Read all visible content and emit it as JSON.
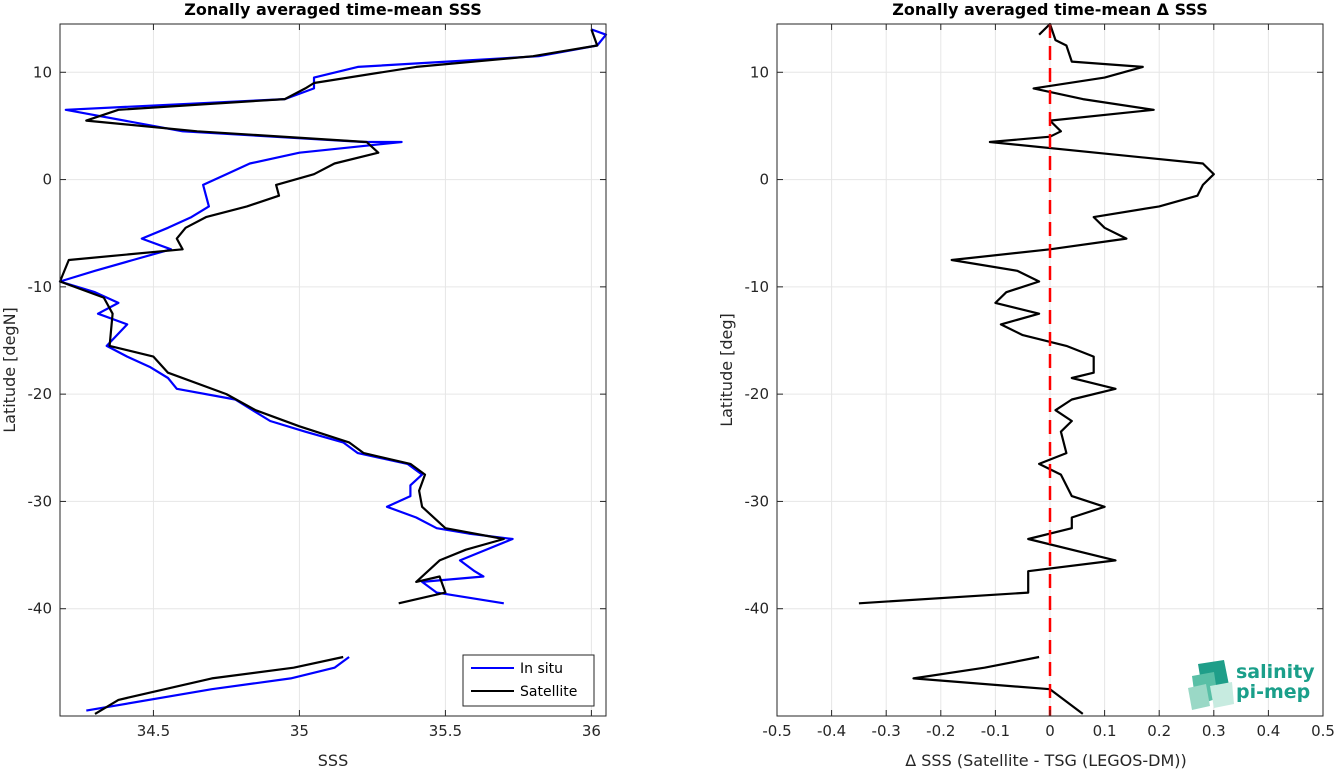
{
  "colors": {
    "in_situ": "#0000ff",
    "satellite": "#000000",
    "zero_line": "#ff0000",
    "logo_teal": "#1a9f8a"
  },
  "logo": {
    "line1": "salinity",
    "line2": "pi-mep"
  },
  "chart_data": [
    {
      "type": "line",
      "title": "Zonally averaged time-mean SSS",
      "xlabel": "SSS",
      "ylabel": "Latitude [degN]",
      "xlim": [
        34.18,
        36.05
      ],
      "ylim": [
        -50,
        14.5
      ],
      "xticks": [
        34.5,
        35,
        35.5,
        36
      ],
      "xtick_labels": [
        "34.5",
        "35",
        "35.5",
        "36"
      ],
      "yticks": [
        -40,
        -30,
        -20,
        -10,
        0,
        10
      ],
      "ytick_labels": [
        "-40",
        "-30",
        "-20",
        "-10",
        "0",
        "10"
      ],
      "grid": true,
      "legend_position": "bottom-right",
      "series": [
        {
          "name": "In situ",
          "color_key": "in_situ",
          "segments": [
            [
              [
                36.0,
                14.0
              ],
              [
                36.05,
                13.5
              ],
              [
                36.02,
                12.5
              ],
              [
                35.82,
                11.5
              ],
              [
                35.2,
                10.5
              ],
              [
                35.05,
                9.5
              ],
              [
                35.05,
                8.5
              ],
              [
                34.95,
                7.5
              ],
              [
                34.2,
                6.5
              ],
              [
                34.6,
                4.5
              ],
              [
                35.22,
                3.5
              ],
              [
                35.35,
                3.5
              ],
              [
                35.0,
                2.5
              ],
              [
                34.83,
                1.5
              ],
              [
                34.75,
                0.5
              ],
              [
                34.67,
                -0.5
              ],
              [
                34.68,
                -1.5
              ],
              [
                34.69,
                -2.5
              ],
              [
                34.63,
                -3.5
              ],
              [
                34.55,
                -4.5
              ],
              [
                34.46,
                -5.5
              ],
              [
                34.56,
                -6.5
              ],
              [
                34.43,
                -7.5
              ],
              [
                34.3,
                -8.5
              ],
              [
                34.18,
                -9.5
              ],
              [
                34.3,
                -10.5
              ],
              [
                34.38,
                -11.5
              ],
              [
                34.31,
                -12.5
              ],
              [
                34.41,
                -13.5
              ],
              [
                34.34,
                -15.5
              ],
              [
                34.41,
                -16.5
              ],
              [
                34.49,
                -17.5
              ],
              [
                34.55,
                -18.5
              ],
              [
                34.58,
                -19.5
              ],
              [
                34.78,
                -20.5
              ],
              [
                34.9,
                -22.5
              ],
              [
                35.02,
                -23.5
              ],
              [
                35.15,
                -24.5
              ],
              [
                35.2,
                -25.5
              ],
              [
                35.37,
                -26.5
              ],
              [
                35.42,
                -27.5
              ],
              [
                35.38,
                -28.5
              ],
              [
                35.38,
                -29.5
              ],
              [
                35.3,
                -30.5
              ],
              [
                35.4,
                -31.5
              ],
              [
                35.47,
                -32.5
              ],
              [
                35.58,
                -33.0
              ],
              [
                35.73,
                -33.5
              ],
              [
                35.55,
                -35.5
              ],
              [
                35.6,
                -36.5
              ],
              [
                35.63,
                -37.0
              ],
              [
                35.42,
                -37.5
              ],
              [
                35.47,
                -38.5
              ],
              [
                35.7,
                -39.5
              ]
            ],
            [
              [
                35.17,
                -44.5
              ],
              [
                35.12,
                -45.5
              ],
              [
                34.97,
                -46.5
              ],
              [
                34.7,
                -47.5
              ],
              [
                34.27,
                -49.5
              ]
            ]
          ]
        },
        {
          "name": "Satellite",
          "color_key": "satellite",
          "segments": [
            [
              [
                36.0,
                14.0
              ],
              [
                36.02,
                12.5
              ],
              [
                35.8,
                11.5
              ],
              [
                35.4,
                10.5
              ],
              [
                35.05,
                9.0
              ],
              [
                35.02,
                8.5
              ],
              [
                34.95,
                7.5
              ],
              [
                34.38,
                6.5
              ],
              [
                34.27,
                5.5
              ],
              [
                34.65,
                4.5
              ],
              [
                35.23,
                3.5
              ],
              [
                35.27,
                2.5
              ],
              [
                35.12,
                1.5
              ],
              [
                35.05,
                0.5
              ],
              [
                34.92,
                -0.5
              ],
              [
                34.93,
                -1.5
              ],
              [
                34.82,
                -2.5
              ],
              [
                34.68,
                -3.5
              ],
              [
                34.61,
                -4.5
              ],
              [
                34.58,
                -5.5
              ],
              [
                34.6,
                -6.5
              ],
              [
                34.21,
                -7.5
              ],
              [
                34.18,
                -9.5
              ],
              [
                34.33,
                -11.0
              ],
              [
                34.36,
                -12.5
              ],
              [
                34.35,
                -15.5
              ],
              [
                34.5,
                -16.5
              ],
              [
                34.55,
                -18.0
              ],
              [
                34.75,
                -20.0
              ],
              [
                34.85,
                -21.5
              ],
              [
                35.0,
                -23.0
              ],
              [
                35.17,
                -24.5
              ],
              [
                35.22,
                -25.5
              ],
              [
                35.38,
                -26.5
              ],
              [
                35.43,
                -27.5
              ],
              [
                35.41,
                -29.0
              ],
              [
                35.42,
                -30.5
              ],
              [
                35.5,
                -32.5
              ],
              [
                35.7,
                -33.5
              ],
              [
                35.57,
                -34.5
              ],
              [
                35.48,
                -35.5
              ],
              [
                35.4,
                -37.5
              ],
              [
                35.48,
                -37.0
              ],
              [
                35.5,
                -38.5
              ],
              [
                35.34,
                -39.5
              ]
            ],
            [
              [
                35.15,
                -44.5
              ],
              [
                34.98,
                -45.5
              ],
              [
                34.7,
                -46.5
              ],
              [
                34.38,
                -48.5
              ],
              [
                34.3,
                -49.8
              ]
            ]
          ]
        }
      ]
    },
    {
      "type": "line",
      "title": "Zonally averaged time-mean Δ SSS",
      "xlabel": "Δ SSS (Satellite - TSG (LEGOS-DM))",
      "ylabel": "Latitude [deg]",
      "xlim": [
        -0.5,
        0.5
      ],
      "ylim": [
        -50,
        14.5
      ],
      "xticks": [
        -0.5,
        -0.4,
        -0.3,
        -0.2,
        -0.1,
        0,
        0.1,
        0.2,
        0.3,
        0.4,
        0.5
      ],
      "xtick_labels": [
        "-0.5",
        "-0.4",
        "-0.3",
        "-0.2",
        "-0.1",
        "0",
        "0.1",
        "0.2",
        "0.3",
        "0.4",
        "0.5"
      ],
      "yticks": [
        -40,
        -30,
        -20,
        -10,
        0,
        10
      ],
      "ytick_labels": [
        "-40",
        "-30",
        "-20",
        "-10",
        "0",
        "10"
      ],
      "grid": true,
      "reference_line_x": 0,
      "series": [
        {
          "color_key": "satellite",
          "segments": [
            [
              [
                -0.02,
                13.5
              ],
              [
                0.0,
                14.5
              ],
              [
                0.01,
                13.0
              ],
              [
                0.03,
                12.5
              ],
              [
                0.04,
                11.0
              ],
              [
                0.17,
                10.5
              ],
              [
                0.1,
                9.5
              ],
              [
                -0.03,
                8.5
              ],
              [
                0.06,
                7.5
              ],
              [
                0.19,
                6.5
              ],
              [
                0.0,
                5.5
              ],
              [
                0.02,
                4.5
              ],
              [
                0.0,
                4.0
              ],
              [
                -0.11,
                3.5
              ],
              [
                0.28,
                1.5
              ],
              [
                0.3,
                0.5
              ],
              [
                0.28,
                -0.5
              ],
              [
                0.27,
                -1.5
              ],
              [
                0.2,
                -2.5
              ],
              [
                0.08,
                -3.5
              ],
              [
                0.1,
                -4.5
              ],
              [
                0.14,
                -5.5
              ],
              [
                0.0,
                -6.5
              ],
              [
                -0.18,
                -7.5
              ],
              [
                -0.06,
                -8.5
              ],
              [
                -0.02,
                -9.5
              ],
              [
                -0.08,
                -10.5
              ],
              [
                -0.1,
                -11.5
              ],
              [
                -0.06,
                -12.0
              ],
              [
                -0.02,
                -12.5
              ],
              [
                -0.09,
                -13.5
              ],
              [
                -0.05,
                -14.5
              ],
              [
                0.03,
                -15.5
              ],
              [
                0.08,
                -16.5
              ],
              [
                0.08,
                -18.0
              ],
              [
                0.04,
                -18.5
              ],
              [
                0.12,
                -19.5
              ],
              [
                0.04,
                -20.5
              ],
              [
                0.01,
                -21.5
              ],
              [
                0.04,
                -22.5
              ],
              [
                0.02,
                -23.5
              ],
              [
                0.03,
                -25.5
              ],
              [
                -0.02,
                -26.5
              ],
              [
                0.02,
                -27.5
              ],
              [
                0.04,
                -29.5
              ],
              [
                0.1,
                -30.5
              ],
              [
                0.04,
                -31.5
              ],
              [
                0.04,
                -32.5
              ],
              [
                -0.04,
                -33.5
              ],
              [
                0.12,
                -35.5
              ],
              [
                -0.04,
                -36.5
              ],
              [
                -0.04,
                -38.5
              ],
              [
                -0.35,
                -39.5
              ]
            ],
            [
              [
                -0.02,
                -44.5
              ],
              [
                -0.12,
                -45.5
              ],
              [
                -0.25,
                -46.5
              ],
              [
                0.0,
                -47.5
              ],
              [
                0.06,
                -49.8
              ]
            ]
          ]
        }
      ]
    }
  ]
}
